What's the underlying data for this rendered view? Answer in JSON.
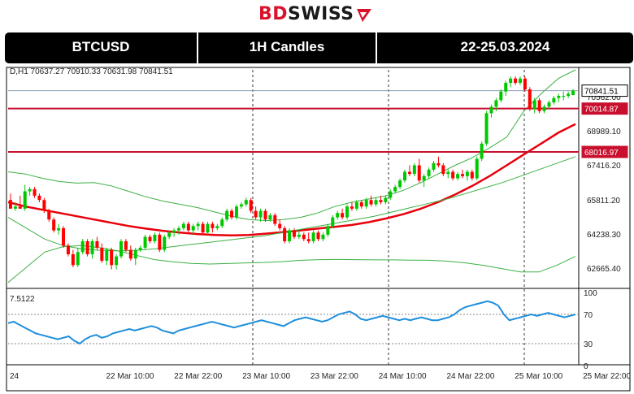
{
  "brand": {
    "bd": "BD",
    "swiss": "SWISS"
  },
  "header": {
    "symbol": "BTCUSD",
    "timeframe": "1H Candles",
    "dates": "22-25.03.2024"
  },
  "ohlc_line": "D,H1  70637.27  70910.33  70631.98  70841.51",
  "rsi_label": "7.5122",
  "colors": {
    "bull": "#00c800",
    "bear": "#ff0000",
    "ma": "#e8000b",
    "bands": "#3cb043",
    "level": "#c8102e",
    "rsi": "#1f8fdc"
  },
  "chart_data": [
    {
      "type": "line",
      "ylim": [
        61800,
        71800
      ],
      "yticks": [
        62665.4,
        64238.3,
        65811.2,
        67416.2,
        68989.1,
        70562.0
      ],
      "ytick_labels": [
        "62665.40",
        "64238.30",
        "65811.20",
        "67416.20",
        "68989.10",
        "70562.00"
      ],
      "xtick_labels": [
        "24",
        "22 Mar 10:00",
        "22 Mar 22:00",
        "23 Mar 10:00",
        "23 Mar 22:00",
        "24 Mar 10:00",
        "24 Mar 22:00",
        "25 Mar 10:00",
        "25 Mar 22:00"
      ],
      "price_tags": [
        {
          "label": "70841.51",
          "value": 70841.51,
          "kind": "current"
        },
        {
          "label": "70014.87",
          "value": 70014.87,
          "kind": "level"
        },
        {
          "label": "68016.97",
          "value": 68016.97,
          "kind": "level"
        }
      ],
      "levels": [
        70014.87,
        68016.97
      ],
      "candles": [
        [
          65800,
          66100,
          65500,
          65400
        ],
        [
          65400,
          65700,
          65300,
          65500
        ],
        [
          65500,
          66000,
          65400,
          65400
        ],
        [
          65400,
          66500,
          65300,
          66200
        ],
        [
          66200,
          66400,
          66000,
          66300
        ],
        [
          66300,
          66400,
          65900,
          66000
        ],
        [
          66000,
          66100,
          65700,
          65800
        ],
        [
          65800,
          65900,
          65200,
          65300
        ],
        [
          65300,
          65400,
          64800,
          64900
        ],
        [
          64900,
          65000,
          64300,
          64400
        ],
        [
          64400,
          64700,
          64200,
          64500
        ],
        [
          64500,
          64600,
          63600,
          63700
        ],
        [
          63700,
          63800,
          63200,
          63300
        ],
        [
          63300,
          63500,
          62700,
          62800
        ],
        [
          62800,
          63600,
          62700,
          63400
        ],
        [
          63400,
          64000,
          63300,
          63900
        ],
        [
          63900,
          64000,
          63200,
          63300
        ],
        [
          63300,
          64000,
          63100,
          63900
        ],
        [
          63900,
          64100,
          63500,
          63600
        ],
        [
          63600,
          63800,
          62900,
          63000
        ],
        [
          63000,
          63600,
          62800,
          63500
        ],
        [
          63500,
          63600,
          62600,
          62800
        ],
        [
          62800,
          63300,
          62600,
          63200
        ],
        [
          63200,
          64000,
          63100,
          63900
        ],
        [
          63900,
          64000,
          63400,
          63500
        ],
        [
          63500,
          63700,
          63000,
          63100
        ],
        [
          63100,
          63600,
          62800,
          63500
        ],
        [
          63500,
          63700,
          63400,
          63600
        ],
        [
          63600,
          64200,
          63500,
          64100
        ],
        [
          64100,
          64200,
          63800,
          63900
        ],
        [
          63900,
          64300,
          63800,
          64200
        ],
        [
          64200,
          64300,
          63400,
          63500
        ],
        [
          63500,
          64200,
          63400,
          64100
        ],
        [
          64100,
          64400,
          64000,
          64300
        ],
        [
          64300,
          64500,
          64100,
          64400
        ],
        [
          64400,
          64600,
          64200,
          64500
        ],
        [
          64500,
          64800,
          64400,
          64700
        ],
        [
          64700,
          64800,
          64300,
          64400
        ],
        [
          64400,
          64700,
          64200,
          64600
        ],
        [
          64600,
          64800,
          64400,
          64700
        ],
        [
          64700,
          64800,
          64200,
          64300
        ],
        [
          64300,
          64800,
          64200,
          64700
        ],
        [
          64700,
          64800,
          64300,
          64500
        ],
        [
          64500,
          64700,
          64400,
          64600
        ],
        [
          64600,
          65000,
          64500,
          64900
        ],
        [
          64900,
          65400,
          64800,
          65300
        ],
        [
          65300,
          65400,
          64900,
          65000
        ],
        [
          65000,
          65600,
          64900,
          65500
        ],
        [
          65500,
          65700,
          65400,
          65600
        ],
        [
          65600,
          65900,
          65500,
          65800
        ],
        [
          65800,
          65900,
          65200,
          65300
        ],
        [
          65300,
          65500,
          64900,
          65000
        ],
        [
          65000,
          65400,
          64800,
          65300
        ],
        [
          65300,
          65400,
          64800,
          64900
        ],
        [
          64900,
          65200,
          64800,
          65100
        ],
        [
          65100,
          65200,
          64600,
          64700
        ],
        [
          64700,
          64900,
          64400,
          64500
        ],
        [
          64500,
          64600,
          63800,
          63900
        ],
        [
          63900,
          64500,
          63800,
          64400
        ],
        [
          64400,
          64500,
          64000,
          64100
        ],
        [
          64100,
          64400,
          64000,
          64200
        ],
        [
          64200,
          64300,
          63900,
          64000
        ],
        [
          64000,
          64300,
          63800,
          63900
        ],
        [
          63900,
          64400,
          63800,
          64300
        ],
        [
          64300,
          64400,
          63900,
          64000
        ],
        [
          64000,
          64300,
          63900,
          64200
        ],
        [
          64200,
          64700,
          64100,
          64600
        ],
        [
          64600,
          65100,
          64500,
          65000
        ],
        [
          65000,
          65300,
          64900,
          65200
        ],
        [
          65200,
          65400,
          64900,
          65000
        ],
        [
          65000,
          65600,
          64900,
          65500
        ],
        [
          65500,
          65700,
          65300,
          65400
        ],
        [
          65400,
          65800,
          65300,
          65700
        ],
        [
          65700,
          65800,
          65400,
          65500
        ],
        [
          65500,
          65900,
          65400,
          65800
        ],
        [
          65800,
          66000,
          65500,
          65600
        ],
        [
          65600,
          65900,
          65500,
          65800
        ],
        [
          65800,
          66000,
          65600,
          65700
        ],
        [
          65700,
          66000,
          65600,
          65900
        ],
        [
          65900,
          66300,
          65800,
          66200
        ],
        [
          66200,
          66500,
          66100,
          66400
        ],
        [
          66400,
          66800,
          66300,
          66700
        ],
        [
          66700,
          67200,
          66600,
          67100
        ],
        [
          67100,
          67400,
          66900,
          67000
        ],
        [
          67000,
          67500,
          66900,
          67400
        ],
        [
          67400,
          67700,
          66600,
          66700
        ],
        [
          66700,
          67000,
          66400,
          66900
        ],
        [
          66900,
          67300,
          66800,
          67200
        ],
        [
          67200,
          67600,
          67100,
          67500
        ],
        [
          67500,
          67800,
          67300,
          67400
        ],
        [
          67400,
          67500,
          66900,
          67000
        ],
        [
          67000,
          67200,
          66800,
          67100
        ],
        [
          67100,
          67200,
          66700,
          66800
        ],
        [
          66800,
          67100,
          66700,
          67000
        ],
        [
          67000,
          67200,
          66800,
          66900
        ],
        [
          66900,
          67200,
          66700,
          67100
        ],
        [
          67100,
          67200,
          66700,
          66800
        ],
        [
          66800,
          67800,
          66700,
          67700
        ],
        [
          67700,
          68500,
          67600,
          68400
        ],
        [
          68400,
          69900,
          68300,
          69800
        ],
        [
          69800,
          70200,
          69600,
          70100
        ],
        [
          70100,
          70500,
          69900,
          70400
        ],
        [
          70400,
          70900,
          70300,
          70800
        ],
        [
          70800,
          71300,
          70600,
          71200
        ],
        [
          71200,
          71500,
          71000,
          71400
        ],
        [
          71400,
          71500,
          71100,
          71200
        ],
        [
          71200,
          71500,
          71100,
          71400
        ],
        [
          71400,
          71500,
          70800,
          70900
        ],
        [
          70900,
          71000,
          69900,
          70000
        ],
        [
          70000,
          70500,
          69800,
          70400
        ],
        [
          70400,
          70500,
          69800,
          69900
        ],
        [
          69900,
          70200,
          69800,
          70100
        ],
        [
          70100,
          70400,
          70000,
          70300
        ],
        [
          70300,
          70600,
          70200,
          70500
        ],
        [
          70500,
          70700,
          70300,
          70600
        ],
        [
          70600,
          70800,
          70400,
          70600
        ],
        [
          70600,
          70800,
          70500,
          70700
        ],
        [
          70637.27,
          70910.33,
          70631.98,
          70841.51
        ]
      ],
      "series": [
        {
          "values": [
            65700,
            65500,
            65350,
            65200,
            65050,
            64900,
            64750,
            64600,
            64480,
            64380,
            64300,
            64230,
            64190,
            64170,
            64190,
            64250,
            64320,
            64400,
            64480,
            64560,
            64650,
            64780,
            64950,
            65150,
            65400,
            65700,
            66050,
            66450,
            66900,
            67400,
            67900,
            68400,
            68900,
            69300
          ]
        },
        {
          "values": [
            62000,
            62700,
            63400,
            63650,
            63700,
            63600,
            63450,
            63250,
            63050,
            62950,
            62880,
            62850,
            62870,
            62900,
            62920,
            62960,
            63020,
            63050,
            63060,
            63050,
            63040,
            63040,
            63030,
            63020,
            62980,
            62900,
            62780,
            62630,
            62480,
            62480,
            62800,
            63200
          ]
        },
        {
          "values": [
            67100,
            67000,
            66800,
            66650,
            66580,
            66600,
            66450,
            66200,
            65950,
            65750,
            65600,
            65450,
            65250,
            65050,
            64900,
            64850,
            64900,
            65000,
            65200,
            65500,
            65700,
            65850,
            66000,
            66250,
            66600,
            67000,
            67400,
            67750,
            68200,
            68700,
            69900,
            70700,
            71400,
            71800
          ]
        },
        {
          "values": [
            65000,
            64500,
            64000,
            63700,
            63550,
            63480,
            63450,
            63480,
            63550,
            63650,
            63750,
            63850,
            63950,
            64050,
            64150,
            64300,
            64450,
            64600,
            64750,
            64900,
            65050,
            65250,
            65450,
            65650,
            65850,
            66100,
            66350,
            66600,
            66900,
            67200,
            67500,
            67800
          ]
        }
      ],
      "rsi": {
        "range": [
          0,
          100
        ],
        "ticks": [
          100,
          70,
          30,
          0
        ],
        "values": [
          58,
          60,
          56,
          52,
          48,
          44,
          42,
          40,
          38,
          36,
          38,
          40,
          34,
          30,
          36,
          40,
          42,
          38,
          40,
          44,
          46,
          48,
          50,
          48,
          50,
          52,
          54,
          52,
          48,
          46,
          44,
          48,
          50,
          52,
          54,
          56,
          58,
          60,
          58,
          56,
          54,
          52,
          54,
          56,
          58,
          60,
          62,
          60,
          58,
          56,
          54,
          58,
          62,
          64,
          66,
          64,
          62,
          60,
          62,
          66,
          70,
          72,
          74,
          70,
          64,
          62,
          64,
          66,
          68,
          66,
          64,
          62,
          64,
          62,
          64,
          66,
          64,
          62,
          62,
          64,
          66,
          70,
          76,
          80,
          82,
          84,
          86,
          88,
          86,
          82,
          70,
          62,
          64,
          66,
          68,
          70,
          68,
          70,
          72,
          70,
          68,
          66,
          68,
          70
        ]
      }
    }
  ]
}
